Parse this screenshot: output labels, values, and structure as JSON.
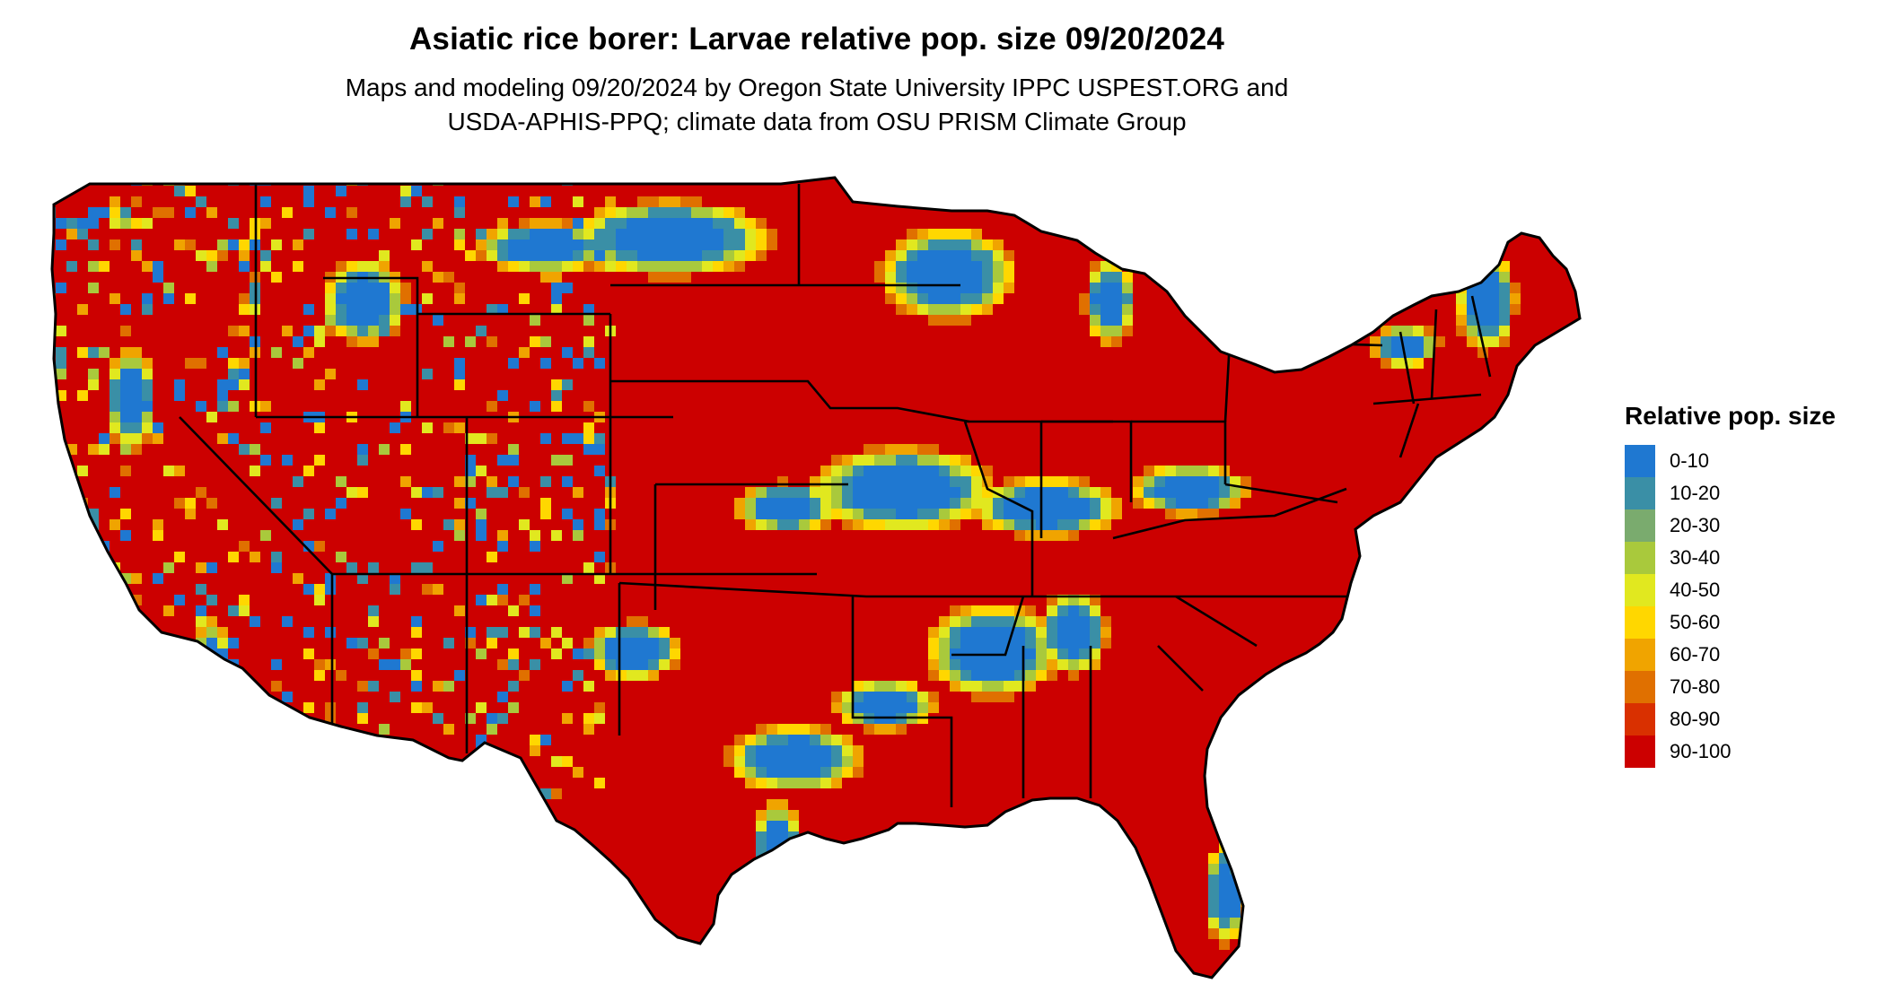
{
  "title": "Asiatic rice borer: Larvae relative pop. size 09/20/2024",
  "subtitle_line1": "Maps and modeling 09/20/2024 by Oregon State University IPPC USPEST.ORG and",
  "subtitle_line2": "USDA-APHIS-PPQ; climate data from OSU PRISM Climate Group",
  "legend": {
    "title": "Relative pop. size",
    "items": [
      {
        "label": "0-10",
        "color": "#1f78d1"
      },
      {
        "label": "10-20",
        "color": "#3a8fa6"
      },
      {
        "label": "20-30",
        "color": "#7aab6e"
      },
      {
        "label": "30-40",
        "color": "#a9c93c"
      },
      {
        "label": "40-50",
        "color": "#e1e81f"
      },
      {
        "label": "50-60",
        "color": "#ffd700"
      },
      {
        "label": "60-70",
        "color": "#f0a400"
      },
      {
        "label": "70-80",
        "color": "#e07000"
      },
      {
        "label": "80-90",
        "color": "#d93000"
      },
      {
        "label": "90-100",
        "color": "#cc0000"
      }
    ]
  }
}
